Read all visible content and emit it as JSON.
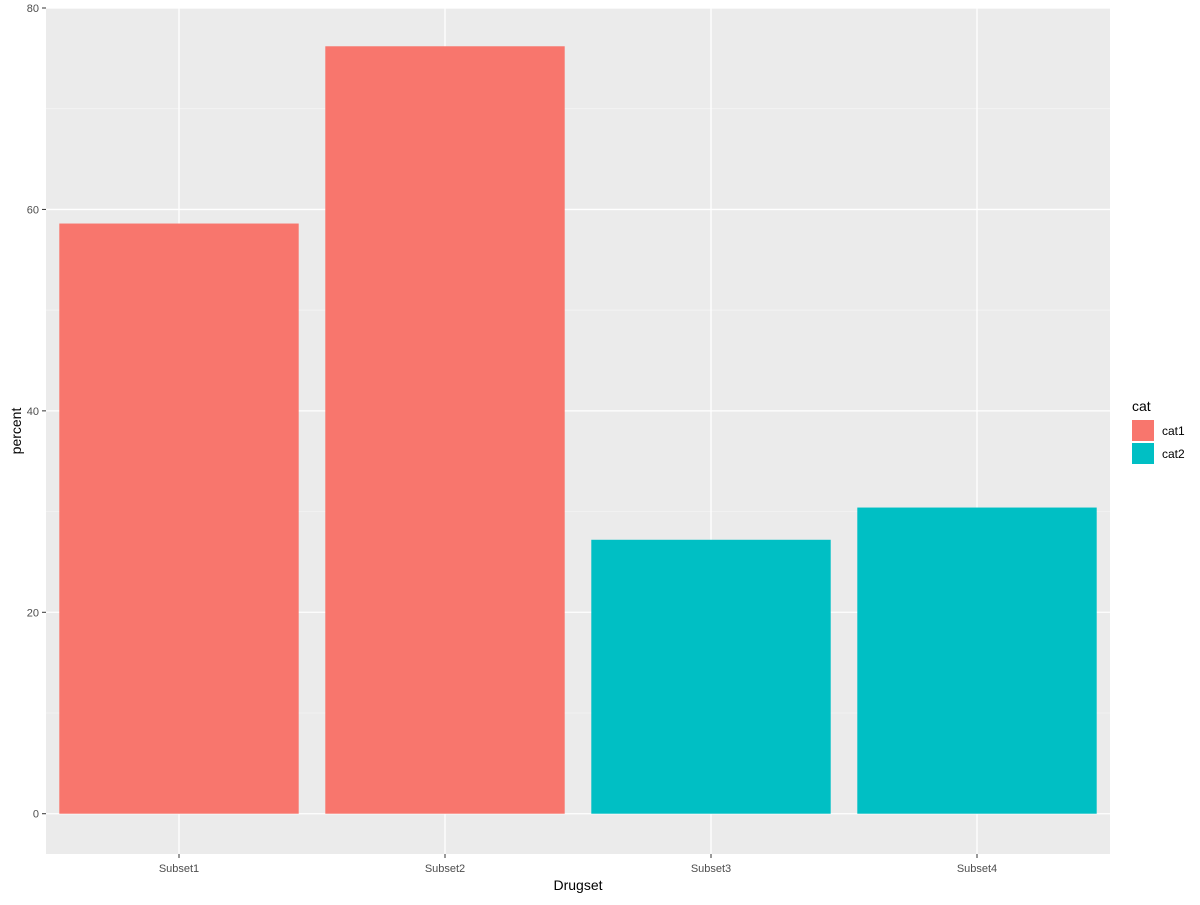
{
  "chart_data": {
    "type": "bar",
    "categories": [
      "Subset1",
      "Subset2",
      "Subset3",
      "Subset4"
    ],
    "values": [
      58.6,
      76.2,
      27.2,
      30.4
    ],
    "bar_category": [
      "cat1",
      "cat1",
      "cat2",
      "cat2"
    ],
    "xlabel": "Drugset",
    "ylabel": "percent",
    "ylim": [
      -4,
      80
    ],
    "yticks": [
      0,
      20,
      40,
      60,
      80
    ],
    "ytick_labels": [
      "0",
      "20",
      "40",
      "60",
      "80"
    ],
    "grid": true,
    "legend": {
      "title": "cat",
      "position": "right",
      "entries": [
        {
          "label": "cat1",
          "color": "#F8766D"
        },
        {
          "label": "cat2",
          "color": "#00BFC4"
        }
      ]
    },
    "colors": {
      "panel_background": "#EBEBEB",
      "grid_major": "#FFFFFF",
      "grid_minor": "#F5F5F5"
    }
  }
}
